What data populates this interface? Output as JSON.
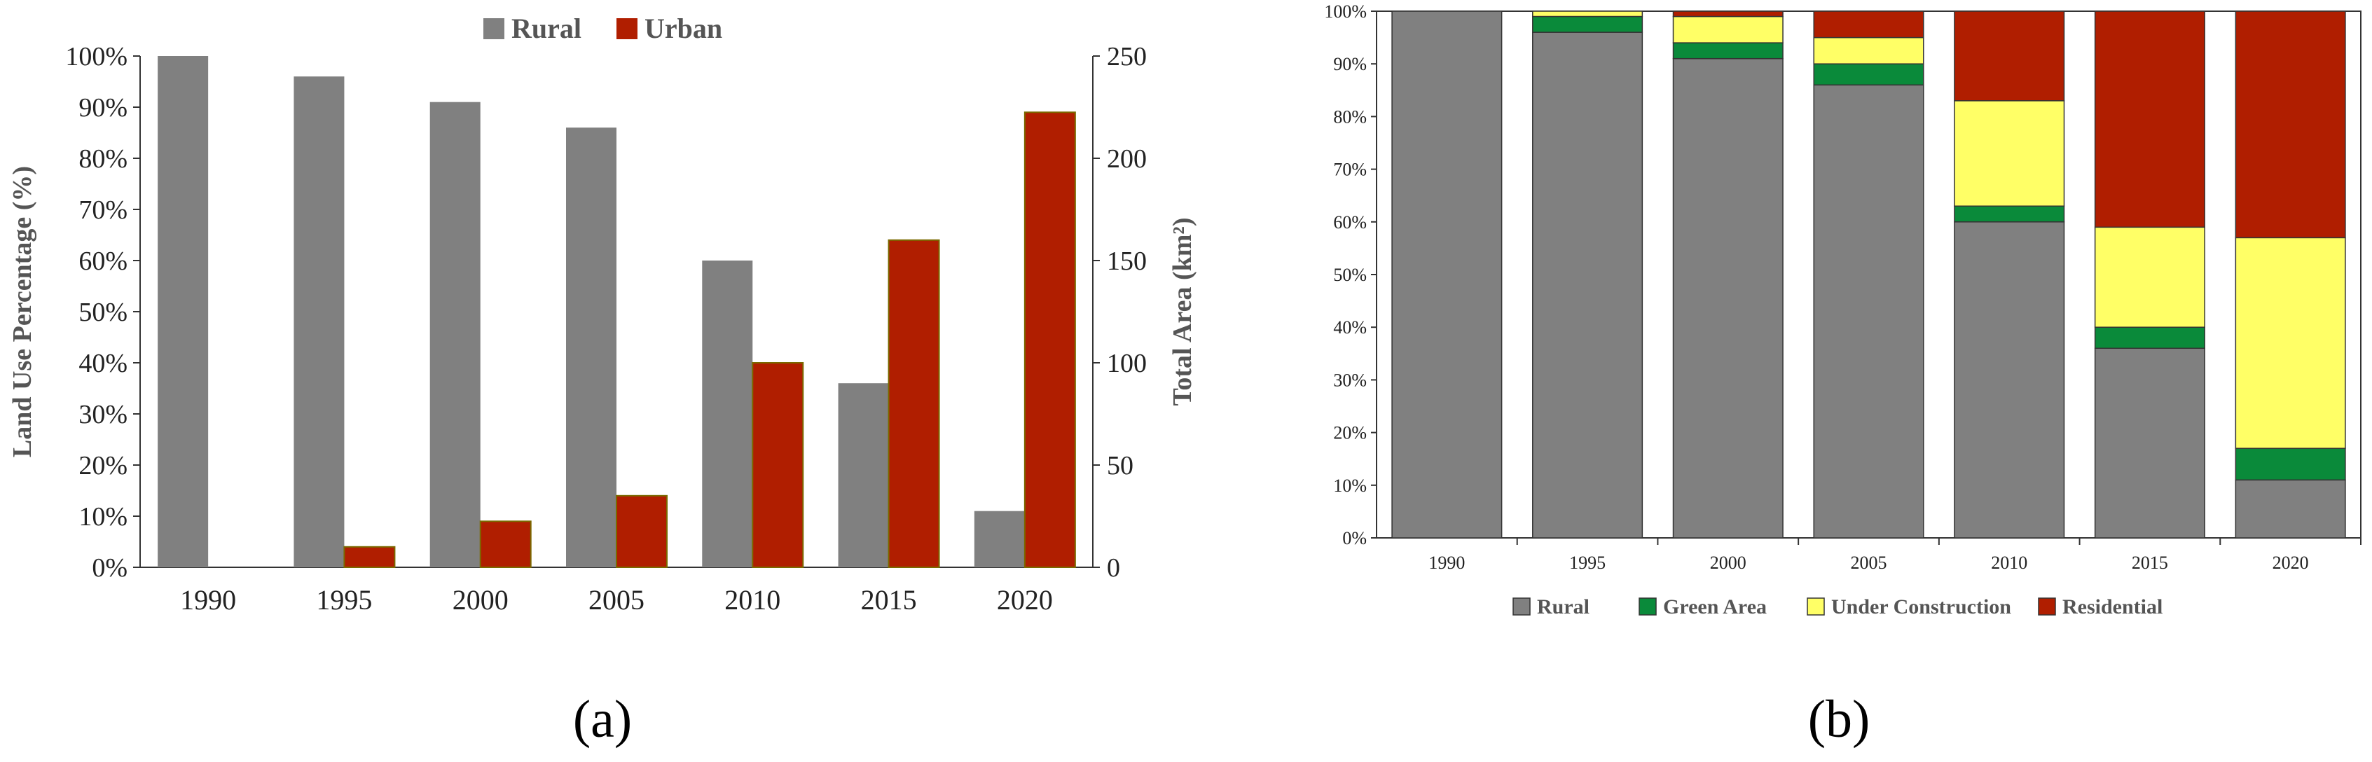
{
  "chart_data": [
    {
      "panel_label": "(a)",
      "type": "bar",
      "categories": [
        "1990",
        "1995",
        "2000",
        "2005",
        "2010",
        "2015",
        "2020"
      ],
      "series": [
        {
          "name": "Rural",
          "values": [
            100,
            96,
            91,
            86,
            60,
            36,
            11
          ],
          "color": "#808080"
        },
        {
          "name": "Urban",
          "values": [
            0,
            4,
            9,
            14,
            40,
            64,
            89
          ],
          "color": "#b01e00"
        }
      ],
      "ylabel": "Land Use Percentage (%)",
      "y2label": "Total Area (km²)",
      "ylim": [
        0,
        100
      ],
      "y2lim": [
        0,
        250
      ],
      "yticks": [
        "0%",
        "10%",
        "20%",
        "30%",
        "40%",
        "50%",
        "60%",
        "70%",
        "80%",
        "90%",
        "100%"
      ],
      "y2ticks": [
        "0",
        "50",
        "100",
        "150",
        "200",
        "250"
      ],
      "legend_position": "top",
      "grid": false
    },
    {
      "panel_label": "(b)",
      "type": "bar",
      "stacked": true,
      "categories": [
        "1990",
        "1995",
        "2000",
        "2005",
        "2010",
        "2015",
        "2020"
      ],
      "series": [
        {
          "name": "Rural",
          "values": [
            100,
            96,
            91,
            86,
            60,
            36,
            11
          ],
          "color": "#808080"
        },
        {
          "name": "Green Area",
          "values": [
            0,
            3,
            3,
            4,
            3,
            4,
            6
          ],
          "color": "#0a8a3a"
        },
        {
          "name": "Under Construction",
          "values": [
            0,
            1,
            5,
            5,
            20,
            19,
            40
          ],
          "color": "#ffff66"
        },
        {
          "name": "Residential",
          "values": [
            0,
            0,
            1,
            5,
            17,
            41,
            43
          ],
          "color": "#b01e00"
        }
      ],
      "ylim": [
        0,
        100
      ],
      "yticks": [
        "0%",
        "10%",
        "20%",
        "30%",
        "40%",
        "50%",
        "60%",
        "70%",
        "80%",
        "90%",
        "100%"
      ],
      "legend_position": "bottom",
      "grid": false
    }
  ]
}
